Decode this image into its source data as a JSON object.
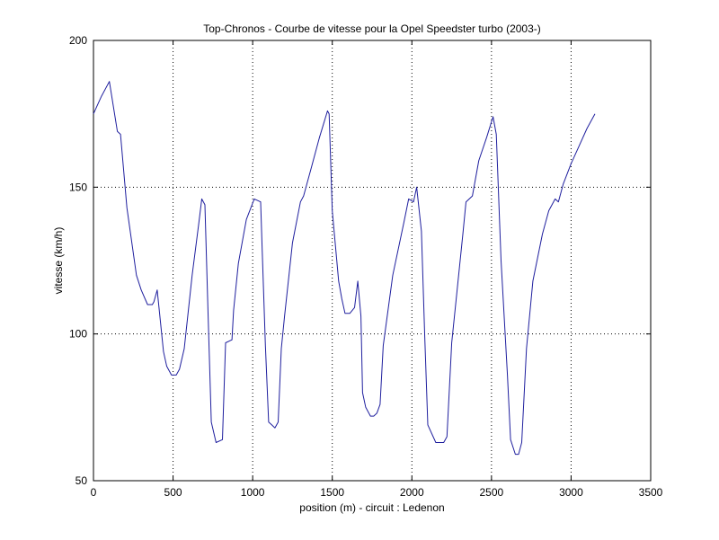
{
  "chart_data": {
    "type": "line",
    "title": "Top-Chronos - Courbe de vitesse pour la Opel Speedster turbo (2003-)",
    "xlabel": "position (m) - circuit : Ledenon",
    "ylabel": "vitesse (km/h)",
    "xlim": [
      0,
      3500
    ],
    "ylim": [
      50,
      200
    ],
    "xticks": [
      0,
      500,
      1000,
      1500,
      2000,
      2500,
      3000,
      3500
    ],
    "yticks": [
      50,
      100,
      150,
      200
    ],
    "xtick_labels": [
      "0",
      "500",
      "1000",
      "1500",
      "2000",
      "2500",
      "3000",
      "3500"
    ],
    "ytick_labels": [
      "50",
      "100",
      "150",
      "200"
    ],
    "grid": true,
    "grid_style": "dotted",
    "legend": false,
    "line_color": "#1f1f9e",
    "series": [
      {
        "x": [
          0,
          50,
          100,
          150,
          170,
          210,
          270,
          300,
          340,
          370,
          380,
          400,
          440,
          460,
          490,
          520,
          540,
          570,
          620,
          660,
          680,
          700,
          720,
          740,
          770,
          810,
          830,
          870,
          880,
          910,
          960,
          1010,
          1050,
          1060,
          1080,
          1100,
          1120,
          1140,
          1160,
          1180,
          1200,
          1250,
          1300,
          1320,
          1370,
          1420,
          1470,
          1480,
          1500,
          1540,
          1560,
          1580,
          1610,
          1640,
          1660,
          1680,
          1690,
          1710,
          1740,
          1760,
          1780,
          1800,
          1820,
          1880,
          1950,
          1980,
          2010,
          2030,
          2060,
          2080,
          2100,
          2150,
          2200,
          2220,
          2250,
          2320,
          2340,
          2380,
          2420,
          2470,
          2510,
          2530,
          2560,
          2600,
          2620,
          2650,
          2670,
          2690,
          2720,
          2760,
          2820,
          2860,
          2900,
          2920,
          2950,
          3000,
          3050,
          3100,
          3150
        ],
        "y": [
          175,
          181,
          186,
          169,
          168,
          143,
          120,
          115,
          110,
          110,
          111,
          115,
          94,
          89,
          86,
          86,
          88,
          95,
          120,
          137,
          146,
          144,
          107,
          70,
          63,
          64,
          97,
          98,
          108,
          124,
          139,
          146,
          145,
          128,
          96,
          70,
          69,
          68,
          70,
          95,
          106,
          131,
          145,
          147,
          157,
          167,
          176,
          175,
          142,
          118,
          112,
          107,
          107,
          109,
          118,
          106,
          80,
          75,
          72,
          72,
          73,
          76,
          96,
          120,
          138,
          146,
          145,
          150,
          135,
          100,
          69,
          63,
          63,
          65,
          97,
          134,
          145,
          147,
          159,
          167,
          174,
          168,
          125,
          86,
          64,
          59,
          59,
          63,
          95,
          118,
          134,
          142,
          146,
          145,
          151,
          158,
          164,
          170,
          175
        ]
      }
    ]
  }
}
